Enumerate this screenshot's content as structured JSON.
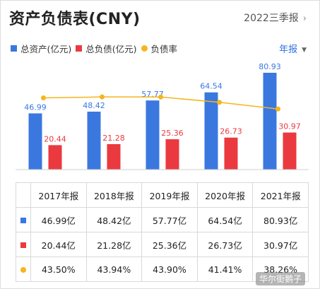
{
  "header": {
    "title": "资产负债表(CNY)",
    "period": "2022三季报"
  },
  "controls": {
    "frequency": "年报"
  },
  "watermark": "华尔街鹅子",
  "colors": {
    "assets": "#3a78e0",
    "liabilities": "#ea3a3f",
    "ratio": "#f5b51d",
    "freq_text": "#2f6fe0"
  },
  "table": {
    "years": [
      "2017年报",
      "2018年报",
      "2019年报",
      "2020年报",
      "2021年报"
    ],
    "assets_text": [
      "46.99亿",
      "48.42亿",
      "57.77亿",
      "64.54亿",
      "80.93亿"
    ],
    "liabilities_text": [
      "20.44亿",
      "21.28亿",
      "25.36亿",
      "26.73亿",
      "30.97亿"
    ],
    "ratio_text": [
      "43.50%",
      "43.94%",
      "43.90%",
      "41.41%",
      "38.26%"
    ]
  },
  "chart_data": {
    "type": "bar",
    "categories": [
      "2017年报",
      "2018年报",
      "2019年报",
      "2020年报",
      "2021年报"
    ],
    "series": [
      {
        "name": "总资产(亿元)",
        "kind": "bar",
        "color": "#3a78e0",
        "values": [
          46.99,
          48.42,
          57.77,
          64.54,
          80.93
        ],
        "labels": [
          "46.99",
          "48.42",
          "57.77",
          "64.54",
          "80.93"
        ]
      },
      {
        "name": "总负债(亿元)",
        "kind": "bar",
        "color": "#ea3a3f",
        "values": [
          20.44,
          21.28,
          25.36,
          26.73,
          30.97
        ],
        "labels": [
          "20.44",
          "21.28",
          "25.36",
          "26.73",
          "30.97"
        ]
      },
      {
        "name": "负债率",
        "kind": "line",
        "color": "#f5b51d",
        "values": [
          43.5,
          43.94,
          43.9,
          41.41,
          38.26
        ],
        "unit": "%"
      }
    ],
    "legend_position": "top-left",
    "grid": false
  }
}
